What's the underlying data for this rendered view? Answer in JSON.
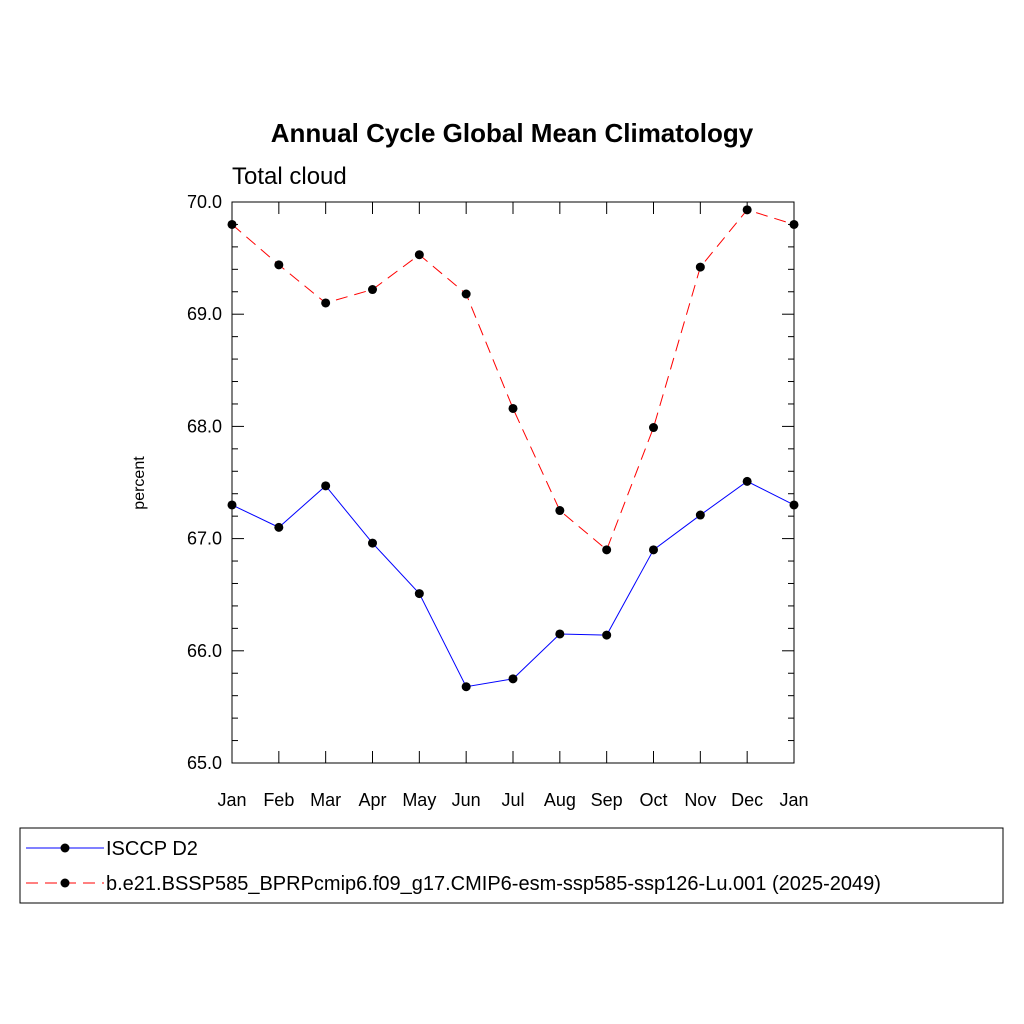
{
  "chart_data": {
    "type": "line",
    "title": "Annual Cycle Global Mean Climatology",
    "subtitle": "Total cloud",
    "xlabel": "",
    "ylabel": "percent",
    "ylim": [
      65.0,
      70.0
    ],
    "yticks": [
      "65.0",
      "66.0",
      "67.0",
      "68.0",
      "69.0",
      "70.0"
    ],
    "categories": [
      "Jan",
      "Feb",
      "Mar",
      "Apr",
      "May",
      "Jun",
      "Jul",
      "Aug",
      "Sep",
      "Oct",
      "Nov",
      "Dec",
      "Jan"
    ],
    "grid": false,
    "legend_position": "bottom",
    "series": [
      {
        "name": "ISCCP D2",
        "color": "#0000ff",
        "dash": "solid",
        "marker": "filled-circle",
        "values": [
          67.3,
          67.1,
          67.47,
          66.96,
          66.51,
          65.68,
          65.75,
          66.15,
          66.14,
          66.9,
          67.21,
          67.51,
          67.3
        ]
      },
      {
        "name": "b.e21.BSSP585_BPRPcmip6.f09_g17.CMIP6-esm-ssp585-ssp126-Lu.001 (2025-2049)",
        "color": "#ff0000",
        "dash": "dashed",
        "marker": "filled-circle",
        "values": [
          69.8,
          69.44,
          69.1,
          69.22,
          69.53,
          69.18,
          68.16,
          67.25,
          66.9,
          67.99,
          69.42,
          69.93,
          69.8
        ]
      }
    ]
  }
}
